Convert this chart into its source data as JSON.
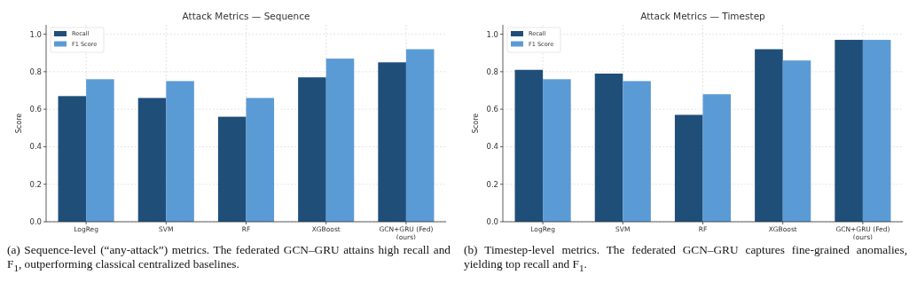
{
  "chart_data": [
    {
      "type": "bar",
      "title": "Attack Metrics — Sequence",
      "ylabel": "Score",
      "categories": [
        "LogReg",
        "SVM",
        "RF",
        "XGBoost",
        "GCN+GRU (Fed)\n(ours)"
      ],
      "series": [
        {
          "name": "Recall",
          "color": "#1f4e79",
          "values": [
            0.67,
            0.66,
            0.56,
            0.77,
            0.85
          ]
        },
        {
          "name": "F1 Score",
          "color": "#5b9bd5",
          "values": [
            0.76,
            0.75,
            0.66,
            0.87,
            0.92
          ]
        }
      ],
      "ylim": [
        0,
        1.05
      ],
      "yticks": [
        {
          "value": 0,
          "label": "0.0"
        },
        {
          "value": 0.2,
          "label": "0.2"
        },
        {
          "value": 0.4,
          "label": "0.4"
        },
        {
          "value": 0.6,
          "label": "0.6"
        },
        {
          "value": 0.8,
          "label": "0.8"
        },
        {
          "value": 1,
          "label": "1.0"
        }
      ],
      "grid": true,
      "legend": "top left",
      "annotations": [
        "(a) Sequence-level (“any-attack”) metrics. The federated GCN–GRU attains high recall and F$_{1}$, outperforming classical centralized baselines."
      ]
    },
    {
      "type": "bar",
      "title": "Attack Metrics — Timestep",
      "ylabel": "Score",
      "categories": [
        "LogReg",
        "SVM",
        "RF",
        "XGBoost",
        "GCN+GRU (Fed)\n(ours)"
      ],
      "series": [
        {
          "name": "Recall",
          "color": "#1f4e79",
          "values": [
            0.81,
            0.79,
            0.57,
            0.92,
            0.97
          ]
        },
        {
          "name": "F1 Score",
          "color": "#5b9bd5",
          "values": [
            0.76,
            0.75,
            0.68,
            0.86,
            0.97
          ]
        }
      ],
      "ylim": [
        0,
        1.05
      ],
      "yticks": [
        {
          "value": 0,
          "label": "0.0"
        },
        {
          "value": 0.2,
          "label": "0.2"
        },
        {
          "value": 0.4,
          "label": "0.4"
        },
        {
          "value": 0.6,
          "label": "0.6"
        },
        {
          "value": 0.8,
          "label": "0.8"
        },
        {
          "value": 1,
          "label": "1.0"
        }
      ],
      "grid": true,
      "legend": "top left",
      "annotations": [
        "(b) Timestep-level metrics. The federated GCN–GRU captures fine-grained anomalies, yielding top recall and F$_{1}$."
      ]
    }
  ]
}
